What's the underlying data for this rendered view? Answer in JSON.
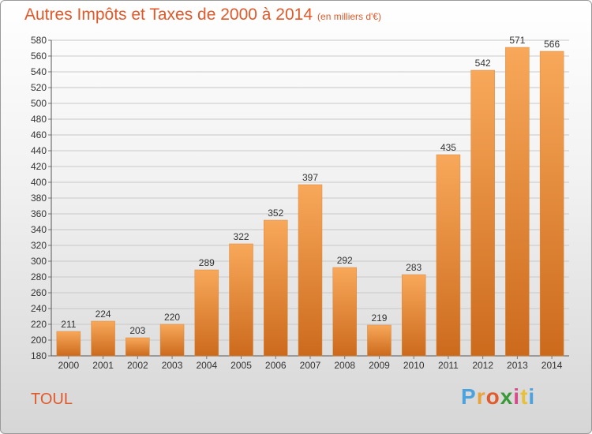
{
  "title": "Autres Impôts et Taxes de 2000 à 2014",
  "unit": "(en milliers d'€)",
  "city": "TOUL",
  "logo": {
    "letters": [
      "P",
      "r",
      "o",
      "x",
      "i",
      "t",
      "i"
    ],
    "colors": [
      "#4aa3df",
      "#e8a33a",
      "#e05a2b",
      "#3a9a3a",
      "#d94a8c",
      "#e8c03a",
      "#4aa3df"
    ]
  },
  "colors": {
    "bar_top": "#f8a85a",
    "bar_bottom": "#cc6a1c",
    "title": "#e0592a"
  },
  "chart_data": {
    "type": "bar",
    "categories": [
      "2000",
      "2001",
      "2002",
      "2003",
      "2004",
      "2005",
      "2006",
      "2007",
      "2008",
      "2009",
      "2010",
      "2011",
      "2012",
      "2013",
      "2014"
    ],
    "values": [
      211,
      224,
      203,
      220,
      289,
      322,
      352,
      397,
      292,
      219,
      283,
      435,
      542,
      571,
      566
    ],
    "ylim": [
      180,
      580
    ],
    "ytick_step": 20,
    "grid": true,
    "xlabel": "",
    "ylabel": ""
  }
}
